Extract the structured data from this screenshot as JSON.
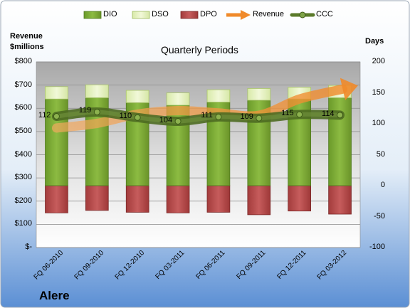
{
  "company": "Alere",
  "chart_data": {
    "type": "bar",
    "title": "Quarterly Periods",
    "left_axis_label": [
      "Revenue",
      "$millions"
    ],
    "right_axis_label": "Days",
    "categories": [
      "FQ 06-2010",
      "FQ 09-2010",
      "FQ 12-2010",
      "FQ 03-2011",
      "FQ 06-2011",
      "FQ 09-2011",
      "FQ 12-2011",
      "FQ 03-2012"
    ],
    "left_ticks": [
      "$800",
      "$700",
      "$600",
      "$500",
      "$400",
      "$300",
      "$200",
      "$100",
      "$-"
    ],
    "left_ylim": [
      0,
      800
    ],
    "right_ticks": [
      "200",
      "150",
      "100",
      "50",
      "0",
      "-50",
      "-100"
    ],
    "right_ylim": [
      -100,
      200
    ],
    "legend_position": "top",
    "series": [
      {
        "name": "DIO",
        "kind": "stacked-bar-positive",
        "axis": "right",
        "color": "#77A033",
        "values": [
          140,
          142,
          134,
          130,
          135,
          138,
          140,
          142
        ]
      },
      {
        "name": "DSO",
        "kind": "stacked-bar-positive",
        "axis": "right",
        "color": "#E3EFC1",
        "values": [
          20,
          21,
          20,
          20,
          20,
          19,
          19,
          20
        ]
      },
      {
        "name": "DPO",
        "kind": "negative-bar",
        "axis": "right",
        "color": "#B24A4A",
        "values": [
          -44,
          -40,
          -43,
          -44,
          -43,
          -47,
          -41,
          -46
        ]
      },
      {
        "name": "Revenue",
        "kind": "arrow-line",
        "axis": "left",
        "color": "#F0923A",
        "values": [
          515,
          535,
          575,
          590,
          580,
          570,
          640,
          680
        ]
      },
      {
        "name": "CCC",
        "kind": "line-markers",
        "axis": "right",
        "color": "#5A7A2A",
        "values": [
          112,
          119,
          110,
          104,
          111,
          109,
          115,
          114
        ]
      }
    ],
    "data_labels": [
      "112",
      "119",
      "110",
      "104",
      "111",
      "109",
      "115",
      "114"
    ],
    "grid": true
  }
}
